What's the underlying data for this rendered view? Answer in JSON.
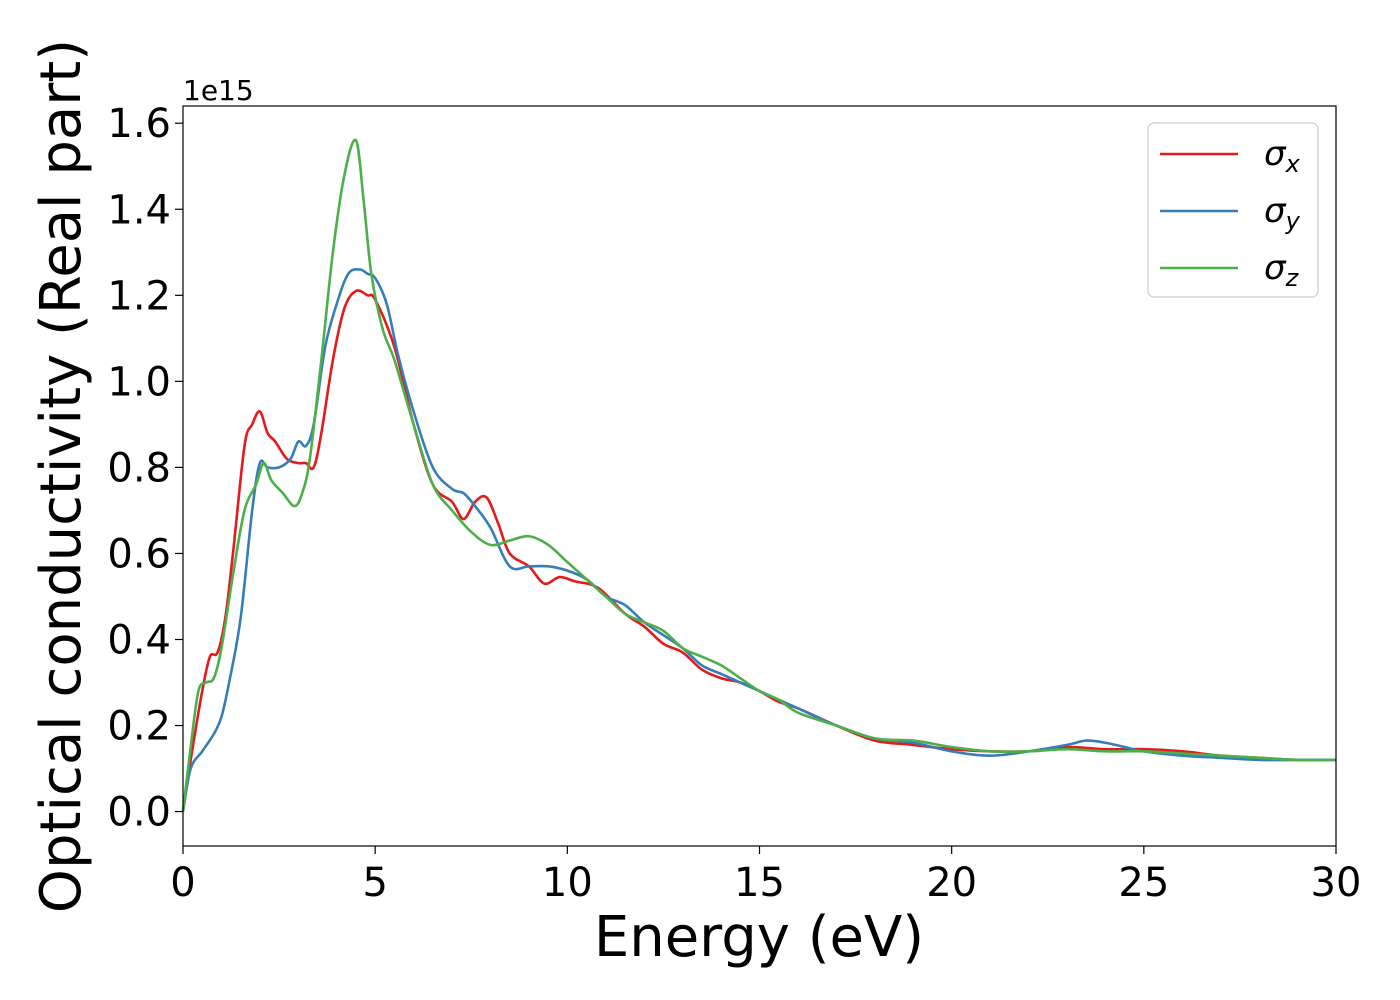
{
  "chart_data": {
    "type": "line",
    "xlabel": "Energy (eV)",
    "ylabel": "Optical conductivity (Real part)",
    "y_offset_label": "1e15",
    "xlim": [
      0,
      30
    ],
    "ylim": [
      -0.08,
      1.64
    ],
    "x_ticks": [
      0,
      5,
      10,
      15,
      20,
      25,
      30
    ],
    "x_tick_labels": [
      "0",
      "5",
      "10",
      "15",
      "20",
      "25",
      "30"
    ],
    "y_ticks": [
      0.0,
      0.2,
      0.4,
      0.6,
      0.8,
      1.0,
      1.2,
      1.4,
      1.6
    ],
    "y_tick_labels": [
      "0.0",
      "0.2",
      "0.4",
      "0.6",
      "0.8",
      "1.0",
      "1.2",
      "1.4",
      "1.6"
    ],
    "grid": false,
    "legend_position": "top-right",
    "series": [
      {
        "name": "σx",
        "symbol": "σ",
        "subscript": "x",
        "color": "#e41a1c",
        "x": [
          0,
          0.2,
          0.5,
          0.7,
          0.9,
          1.1,
          1.3,
          1.6,
          1.8,
          2.0,
          2.2,
          2.4,
          2.7,
          3.0,
          3.2,
          3.4,
          3.6,
          3.9,
          4.2,
          4.5,
          4.8,
          5.0,
          5.5,
          6.0,
          6.5,
          7.0,
          7.3,
          7.6,
          7.9,
          8.2,
          8.5,
          9.0,
          9.4,
          9.8,
          10.2,
          10.8,
          11.5,
          12.0,
          12.5,
          13.0,
          13.5,
          14.0,
          14.5,
          15.0,
          15.5,
          16.0,
          17.0,
          18.0,
          19.0,
          20.0,
          21.0,
          22.0,
          23.0,
          24.0,
          25.0,
          26.0,
          27.0,
          28.0,
          29.0,
          30.0
        ],
        "y": [
          0.0,
          0.12,
          0.28,
          0.36,
          0.37,
          0.45,
          0.6,
          0.85,
          0.9,
          0.93,
          0.88,
          0.86,
          0.82,
          0.81,
          0.81,
          0.8,
          0.88,
          1.05,
          1.17,
          1.21,
          1.2,
          1.19,
          1.08,
          0.9,
          0.76,
          0.72,
          0.68,
          0.72,
          0.73,
          0.67,
          0.6,
          0.57,
          0.53,
          0.545,
          0.535,
          0.52,
          0.46,
          0.43,
          0.39,
          0.37,
          0.33,
          0.31,
          0.3,
          0.28,
          0.255,
          0.24,
          0.2,
          0.165,
          0.155,
          0.145,
          0.14,
          0.14,
          0.15,
          0.145,
          0.145,
          0.14,
          0.13,
          0.125,
          0.12,
          0.12
        ]
      },
      {
        "name": "σy",
        "symbol": "σ",
        "subscript": "y",
        "color": "#377eb8",
        "x": [
          0,
          0.2,
          0.5,
          0.8,
          1.0,
          1.2,
          1.5,
          1.8,
          2.0,
          2.2,
          2.5,
          2.8,
          3.0,
          3.2,
          3.4,
          3.7,
          4.0,
          4.3,
          4.6,
          4.8,
          5.0,
          5.3,
          5.6,
          6.0,
          6.5,
          7.0,
          7.3,
          7.6,
          8.0,
          8.5,
          9.0,
          9.5,
          10.0,
          10.5,
          11.0,
          11.5,
          12.0,
          12.5,
          13.0,
          13.5,
          14.0,
          14.5,
          15.0,
          15.5,
          16.0,
          17.0,
          18.0,
          19.0,
          20.0,
          21.0,
          22.0,
          23.0,
          23.5,
          24.0,
          24.5,
          25.0,
          26.0,
          27.0,
          28.0,
          29.0,
          30.0
        ],
        "y": [
          0.0,
          0.1,
          0.14,
          0.18,
          0.22,
          0.3,
          0.45,
          0.7,
          0.81,
          0.8,
          0.8,
          0.82,
          0.86,
          0.85,
          0.9,
          1.08,
          1.18,
          1.25,
          1.26,
          1.25,
          1.24,
          1.18,
          1.06,
          0.93,
          0.8,
          0.75,
          0.74,
          0.71,
          0.66,
          0.57,
          0.57,
          0.57,
          0.56,
          0.54,
          0.5,
          0.48,
          0.44,
          0.41,
          0.38,
          0.34,
          0.32,
          0.3,
          0.28,
          0.26,
          0.24,
          0.2,
          0.17,
          0.16,
          0.14,
          0.13,
          0.14,
          0.155,
          0.165,
          0.16,
          0.15,
          0.14,
          0.13,
          0.125,
          0.12,
          0.12,
          0.12
        ]
      },
      {
        "name": "σz",
        "symbol": "σ",
        "subscript": "z",
        "color": "#4daf4a",
        "x": [
          0,
          0.2,
          0.4,
          0.6,
          0.8,
          1.0,
          1.3,
          1.6,
          1.9,
          2.1,
          2.3,
          2.6,
          2.9,
          3.1,
          3.3,
          3.6,
          3.9,
          4.2,
          4.5,
          4.7,
          4.9,
          5.2,
          5.5,
          6.0,
          6.5,
          7.0,
          7.5,
          8.0,
          8.5,
          9.0,
          9.5,
          10.0,
          10.5,
          11.0,
          11.5,
          12.0,
          12.5,
          13.0,
          13.5,
          14.0,
          14.5,
          15.0,
          15.5,
          16.0,
          17.0,
          18.0,
          19.0,
          20.0,
          21.0,
          22.0,
          23.0,
          24.0,
          25.0,
          26.0,
          27.0,
          28.0,
          29.0,
          30.0
        ],
        "y": [
          0.0,
          0.15,
          0.28,
          0.3,
          0.31,
          0.38,
          0.55,
          0.7,
          0.76,
          0.81,
          0.77,
          0.74,
          0.71,
          0.74,
          0.82,
          1.05,
          1.3,
          1.48,
          1.56,
          1.42,
          1.25,
          1.12,
          1.05,
          0.9,
          0.76,
          0.7,
          0.65,
          0.62,
          0.63,
          0.64,
          0.62,
          0.58,
          0.54,
          0.5,
          0.46,
          0.44,
          0.42,
          0.38,
          0.36,
          0.34,
          0.31,
          0.28,
          0.26,
          0.23,
          0.2,
          0.17,
          0.165,
          0.15,
          0.14,
          0.14,
          0.145,
          0.14,
          0.14,
          0.135,
          0.13,
          0.125,
          0.12,
          0.12
        ]
      }
    ]
  }
}
